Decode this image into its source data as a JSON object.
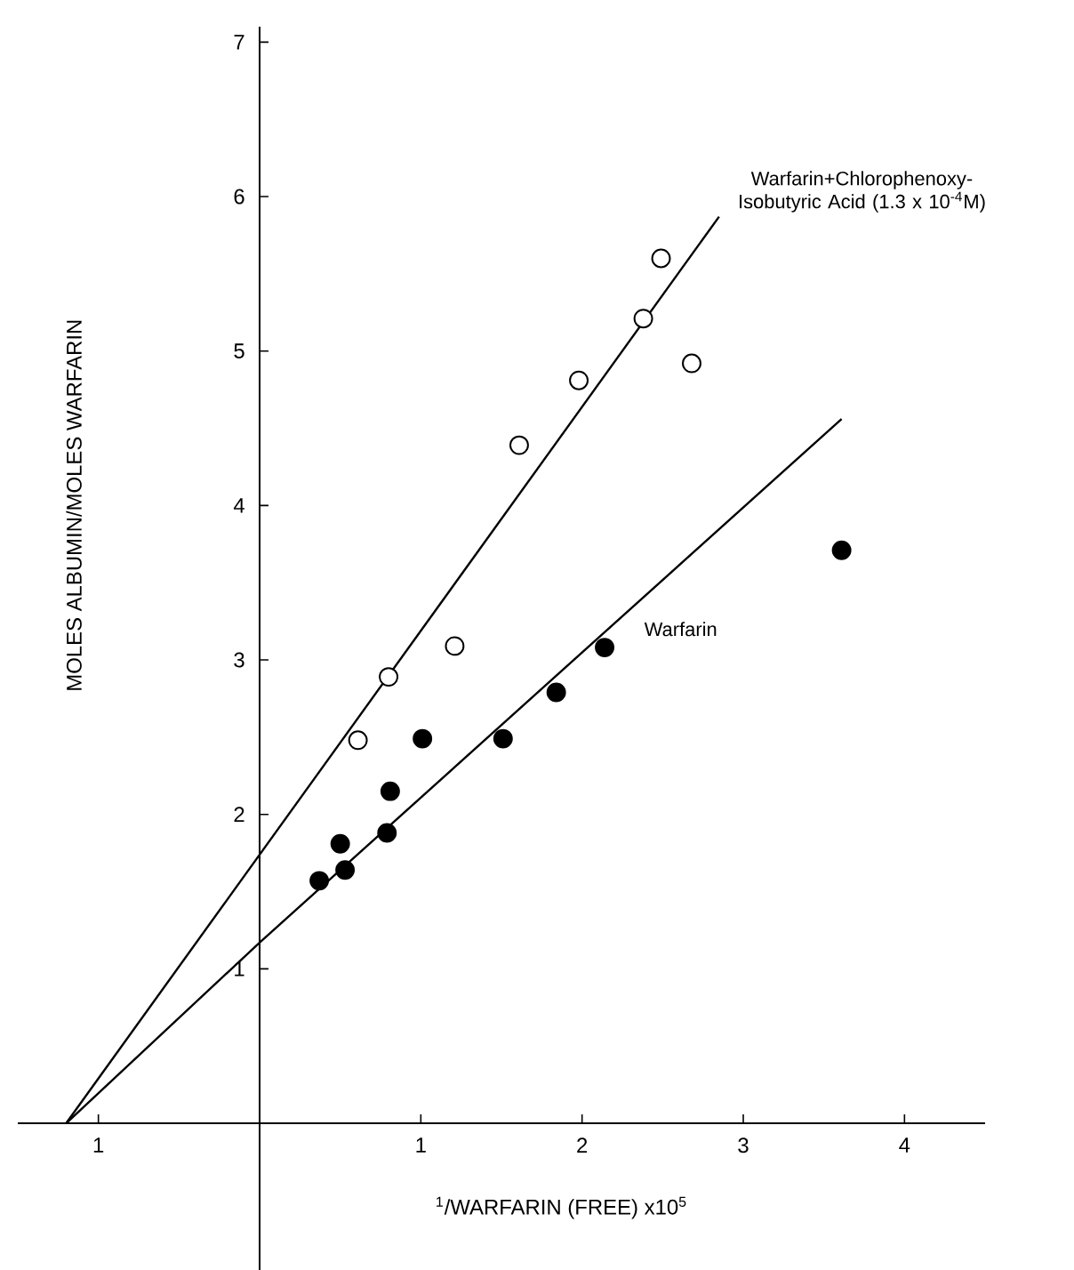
{
  "chart_data": {
    "type": "scatter",
    "xlabel": "$^{1}$/WARFARIN (FREE) x10$^{5}$",
    "ylabel": "MOLES  ALBUMIN/MOLES  WARFARIN",
    "xlim": [
      -1.5,
      4.5
    ],
    "ylim": [
      -0.95,
      7.1
    ],
    "xticks": [
      {
        "value": -1,
        "label": "1"
      },
      1,
      2,
      3,
      4
    ],
    "yticks": [
      1,
      2,
      3,
      4,
      5,
      6,
      7
    ],
    "series": [
      {
        "marker": "circle",
        "color": "#ffffff",
        "x": [
          0.61,
          0.8,
          1.21,
          1.61,
          1.98,
          2.38,
          2.49,
          2.68
        ],
        "values": [
          2.48,
          2.89,
          3.09,
          4.39,
          4.81,
          5.21,
          5.6,
          4.92
        ]
      },
      {
        "name": "Warfarin",
        "marker": "circle",
        "color": "#000000",
        "x": [
          0.37,
          0.53,
          0.5,
          0.79,
          0.81,
          1.01,
          1.51,
          1.84,
          2.14,
          3.61
        ],
        "values": [
          1.57,
          1.64,
          1.81,
          1.88,
          2.15,
          2.49,
          2.49,
          2.79,
          3.08,
          3.71
        ]
      },
      {
        "name": "Warfarin+Chlorophenoxy- Isobutyric Acid (1.3 x 10$^{-4}$M)",
        "type": "line",
        "marker": "none",
        "color": "#000000",
        "x": [
          -1.2,
          2.85
        ],
        "values": [
          0,
          5.87
        ]
      },
      {
        "type": "line",
        "marker": "none",
        "color": "#000000",
        "x": [
          -1.2,
          0,
          3.61
        ],
        "values": [
          0,
          1.17,
          4.56
        ]
      }
    ]
  }
}
